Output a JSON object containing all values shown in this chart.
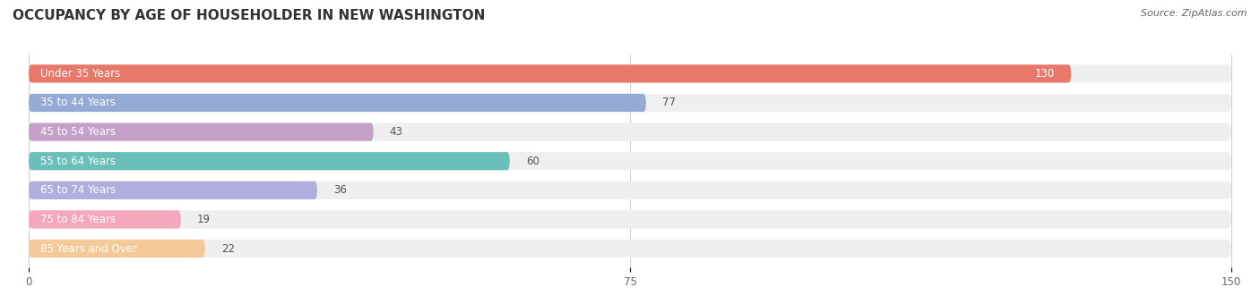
{
  "title": "OCCUPANCY BY AGE OF HOUSEHOLDER IN NEW WASHINGTON",
  "source": "Source: ZipAtlas.com",
  "categories": [
    "Under 35 Years",
    "35 to 44 Years",
    "45 to 54 Years",
    "55 to 64 Years",
    "65 to 74 Years",
    "75 to 84 Years",
    "85 Years and Over"
  ],
  "values": [
    130,
    77,
    43,
    60,
    36,
    19,
    22
  ],
  "bar_colors": [
    "#E8796A",
    "#94AAD4",
    "#C4A0C8",
    "#6BBFBA",
    "#B0AEDD",
    "#F4A8BB",
    "#F5C99A"
  ],
  "bar_bg_color": "#EFEFEF",
  "xlim": [
    0,
    150
  ],
  "xticks": [
    0,
    75,
    150
  ],
  "title_fontsize": 11,
  "source_fontsize": 8,
  "label_fontsize": 8.5,
  "value_fontsize": 8.5,
  "bar_height": 0.62,
  "figsize": [
    14.06,
    3.4
  ],
  "dpi": 100
}
